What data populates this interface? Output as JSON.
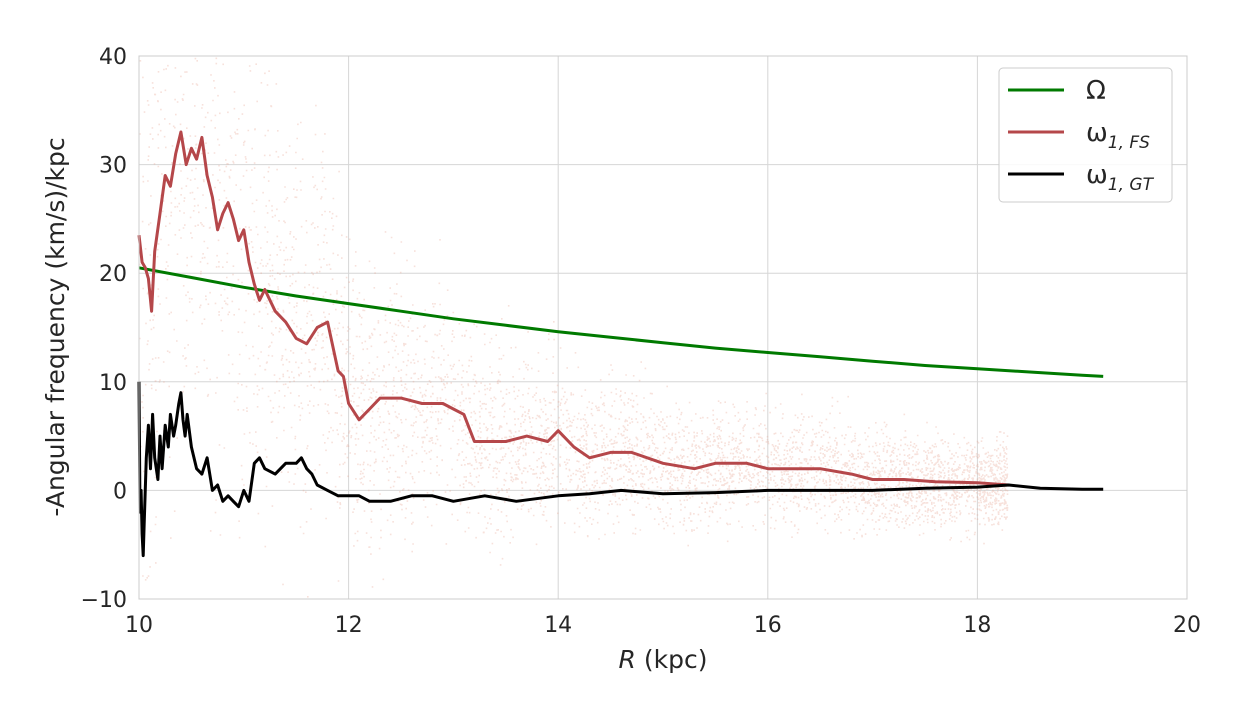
{
  "chart_data": {
    "type": "line",
    "xlabel": "(kpc)",
    "xlabel_var": "R",
    "ylabel": "-Angular frequency (km/s)/kpc",
    "xlim": [
      10,
      20
    ],
    "ylim": [
      -10,
      40
    ],
    "xticks": [
      10,
      12,
      14,
      16,
      18,
      20
    ],
    "yticks": [
      -10,
      0,
      10,
      20,
      30,
      40
    ],
    "xtick_labels": [
      "10",
      "12",
      "14",
      "16",
      "18",
      "20"
    ],
    "ytick_labels": [
      "−10",
      "0",
      "10",
      "20",
      "30",
      "40"
    ],
    "grid": true,
    "legend_position": "top-right",
    "scatter_color": "#e8a898",
    "series": [
      {
        "name": "Ω",
        "label_main": "Ω",
        "label_sub": "",
        "color": "#007a00",
        "x": [
          10.0,
          10.5,
          11.0,
          11.5,
          12.0,
          12.5,
          13.0,
          13.5,
          14.0,
          14.5,
          15.0,
          15.5,
          16.0,
          16.5,
          17.0,
          17.5,
          18.0,
          18.5,
          19.0,
          19.2
        ],
        "y": [
          20.5,
          19.6,
          18.7,
          17.9,
          17.2,
          16.5,
          15.8,
          15.2,
          14.6,
          14.1,
          13.6,
          13.1,
          12.7,
          12.3,
          11.9,
          11.5,
          11.2,
          10.9,
          10.6,
          10.5
        ]
      },
      {
        "name": "ω1,FS",
        "label_main": "ω",
        "label_sub": "1, FS",
        "color": "#b5474a",
        "x": [
          10.0,
          10.03,
          10.06,
          10.09,
          10.12,
          10.15,
          10.2,
          10.25,
          10.3,
          10.35,
          10.4,
          10.45,
          10.5,
          10.55,
          10.6,
          10.65,
          10.7,
          10.75,
          10.8,
          10.85,
          10.9,
          10.95,
          11.0,
          11.05,
          11.1,
          11.15,
          11.2,
          11.3,
          11.4,
          11.5,
          11.6,
          11.7,
          11.8,
          11.9,
          11.95,
          12.0,
          12.1,
          12.2,
          12.3,
          12.5,
          12.7,
          12.9,
          13.0,
          13.1,
          13.2,
          13.3,
          13.5,
          13.7,
          13.9,
          14.0,
          14.15,
          14.3,
          14.5,
          14.7,
          15.0,
          15.3,
          15.5,
          15.8,
          16.0,
          16.3,
          16.5,
          16.8,
          17.0,
          17.3,
          17.6,
          18.0,
          18.3
        ],
        "y": [
          23.5,
          21.0,
          20.5,
          19.5,
          16.5,
          22.0,
          25.5,
          29.0,
          28.0,
          31.0,
          33.0,
          30.0,
          31.5,
          30.5,
          32.5,
          29.0,
          27.0,
          24.0,
          25.5,
          26.5,
          25.0,
          23.0,
          24.0,
          21.0,
          19.0,
          17.5,
          18.5,
          16.5,
          15.5,
          14.0,
          13.5,
          15.0,
          15.5,
          11.0,
          10.5,
          8.0,
          6.5,
          7.5,
          8.5,
          8.5,
          8.0,
          8.0,
          7.5,
          7.0,
          4.5,
          4.5,
          4.5,
          5.0,
          4.5,
          5.5,
          4.0,
          3.0,
          3.5,
          3.5,
          2.5,
          2.0,
          2.5,
          2.5,
          2.0,
          2.0,
          2.0,
          1.5,
          1.0,
          1.0,
          0.8,
          0.7,
          0.5
        ]
      },
      {
        "name": "ω1,GT",
        "label_main": "ω",
        "label_sub": "1, GT",
        "color": "#000000",
        "x": [
          10.0,
          10.01,
          10.02,
          10.03,
          10.04,
          10.05,
          10.07,
          10.09,
          10.11,
          10.13,
          10.15,
          10.18,
          10.2,
          10.22,
          10.25,
          10.28,
          10.3,
          10.33,
          10.35,
          10.38,
          10.4,
          10.42,
          10.44,
          10.46,
          10.5,
          10.55,
          10.6,
          10.65,
          10.7,
          10.75,
          10.8,
          10.85,
          10.9,
          10.95,
          11.0,
          11.05,
          11.1,
          11.15,
          11.2,
          11.3,
          11.4,
          11.5,
          11.55,
          11.6,
          11.65,
          11.7,
          11.8,
          11.9,
          12.0,
          12.1,
          12.2,
          12.4,
          12.6,
          12.8,
          13.0,
          13.3,
          13.6,
          14.0,
          14.3,
          14.6,
          15.0,
          15.5,
          16.0,
          16.5,
          17.0,
          17.5,
          18.0,
          18.3,
          18.6,
          19.0,
          19.2
        ],
        "y": [
          10.0,
          -2.0,
          0.0,
          -4.0,
          -6.0,
          -3.0,
          3.0,
          6.0,
          2.0,
          7.0,
          3.0,
          1.0,
          5.0,
          2.0,
          6.0,
          4.0,
          7.0,
          5.0,
          6.0,
          8.0,
          9.0,
          6.5,
          5.0,
          7.0,
          4.0,
          2.0,
          1.5,
          3.0,
          0.0,
          0.5,
          -1.0,
          -0.5,
          -1.0,
          -1.5,
          0.0,
          -1.0,
          2.5,
          3.0,
          2.0,
          1.5,
          2.5,
          2.5,
          3.0,
          2.0,
          1.5,
          0.5,
          0.0,
          -0.5,
          -0.5,
          -0.5,
          -1.0,
          -1.0,
          -0.5,
          -0.5,
          -1.0,
          -0.5,
          -1.0,
          -0.5,
          -0.3,
          0.0,
          -0.3,
          -0.2,
          0.0,
          0.0,
          0.0,
          0.2,
          0.3,
          0.5,
          0.2,
          0.1,
          0.1
        ]
      }
    ]
  }
}
